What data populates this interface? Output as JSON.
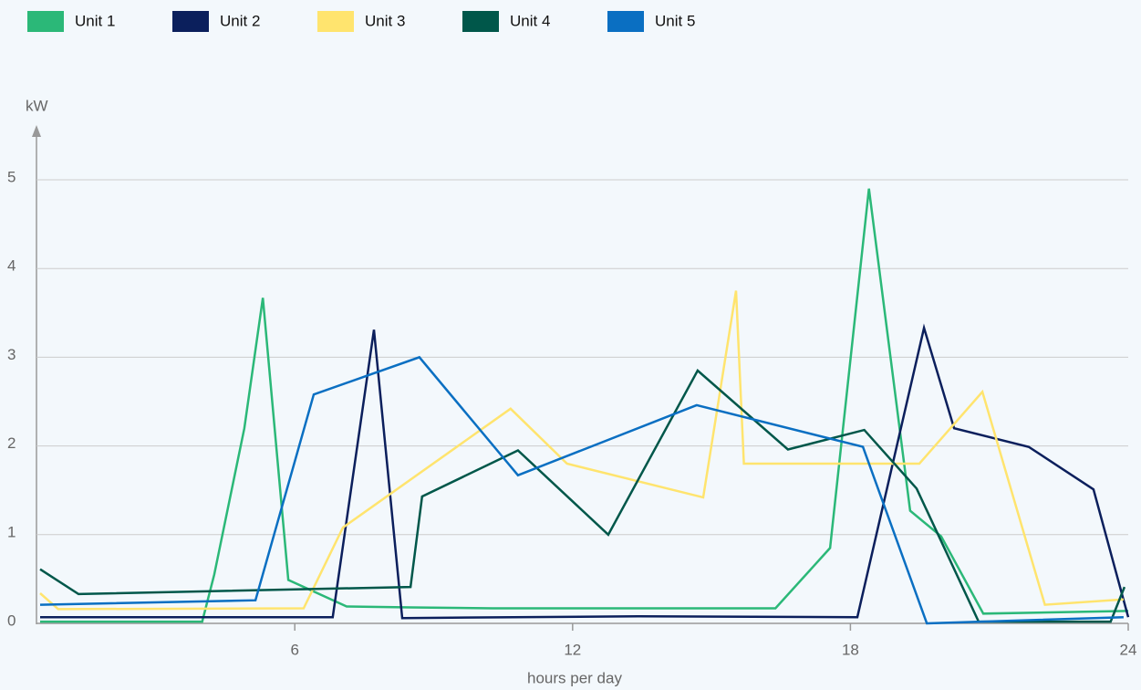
{
  "chart_data": {
    "type": "line",
    "y_label": "kW",
    "x_label": "hours per day",
    "xlim": [
      0.5,
      24
    ],
    "xticks": [
      6,
      12,
      18,
      24
    ],
    "ylim": [
      0,
      5.6
    ],
    "yticks": [
      0,
      1,
      2,
      3,
      4,
      5
    ],
    "grid": true,
    "legend": "top",
    "series": [
      {
        "name": "Unit 1",
        "color": "#2bb878",
        "x": [
          0.5,
          4.0,
          4.26,
          4.91,
          5.31,
          5.86,
          7.12,
          8.5,
          10.27,
          16.38,
          17.56,
          18.4,
          19.29,
          19.96,
          20.87,
          24
        ],
        "values": [
          0.02,
          0.02,
          0.55,
          2.2,
          3.67,
          0.49,
          0.19,
          0.18,
          0.17,
          0.17,
          0.85,
          4.9,
          1.27,
          0.98,
          0.11,
          0.14
        ]
      },
      {
        "name": "Unit 2",
        "color": "#0b1f5c",
        "x": [
          0.5,
          6.82,
          7.71,
          8.32,
          13.42,
          18.15,
          19.59,
          20.24,
          21.85,
          23.25,
          24
        ],
        "values": [
          0.07,
          0.07,
          3.31,
          0.06,
          0.08,
          0.07,
          3.33,
          2.2,
          1.99,
          1.51,
          0.07
        ]
      },
      {
        "name": "Unit 3",
        "color": "#ffe46e",
        "x": [
          0.5,
          0.89,
          6.19,
          7.04,
          10.66,
          11.88,
          14.82,
          15.53,
          15.7,
          19.49,
          20.85,
          22.2,
          23.9
        ],
        "values": [
          0.34,
          0.16,
          0.17,
          1.08,
          2.42,
          1.8,
          1.42,
          3.75,
          1.8,
          1.8,
          2.61,
          0.21,
          0.27
        ]
      },
      {
        "name": "Unit 4",
        "color": "#00574a",
        "x": [
          0.5,
          1.33,
          8.5,
          8.75,
          10.82,
          12.77,
          14.7,
          16.65,
          18.3,
          19.43,
          20.77,
          23.62,
          23.92
        ],
        "values": [
          0.61,
          0.33,
          0.41,
          1.43,
          1.95,
          1.0,
          2.85,
          1.96,
          2.18,
          1.52,
          0.02,
          0.02,
          0.41
        ]
      },
      {
        "name": "Unit 5",
        "color": "#0a6fc2",
        "x": [
          0.5,
          5.15,
          6.41,
          8.69,
          10.82,
          14.68,
          18.27,
          19.65,
          23.9
        ],
        "values": [
          0.21,
          0.26,
          2.58,
          3.0,
          1.67,
          2.46,
          1.99,
          0,
          0.07
        ]
      }
    ]
  }
}
